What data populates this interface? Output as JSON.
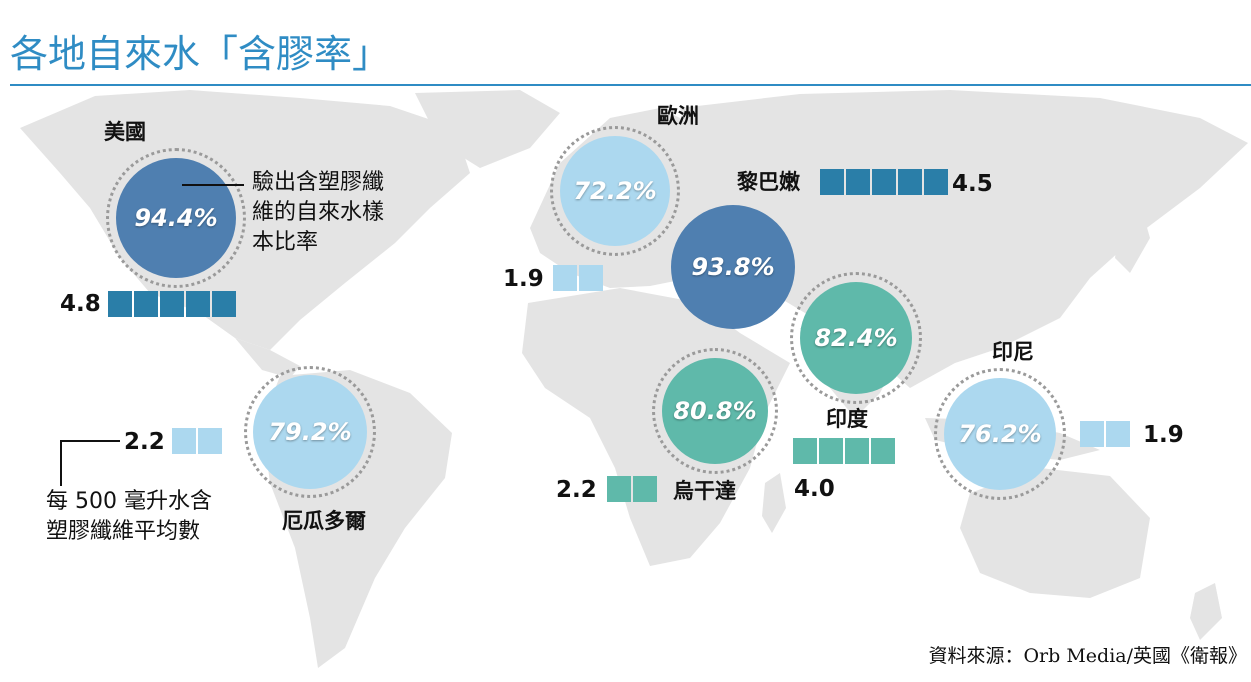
{
  "title": "各地自來水「含膠率」",
  "colors": {
    "title": "#2f8cc4",
    "land": "#e4e4e4",
    "high": "#4f7fb0",
    "mid_teal": "#5fb9aa",
    "light_blue": "#acd8ef",
    "block_dark": "#2a7ea8",
    "block_light": "#aad4ec",
    "block_teal": "#5fb9aa"
  },
  "legend": {
    "rate_note": [
      "驗出含塑膠纖",
      "維的自來水樣",
      "本比率"
    ],
    "avg_note": [
      "每 500 毫升水含",
      "塑膠纖維平均數"
    ]
  },
  "regions": [
    {
      "name": "美國",
      "rate": "94.4%",
      "avg": "4.8",
      "color": "high",
      "block_color": "block_dark",
      "blocks": 5
    },
    {
      "name": "厄瓜多爾",
      "rate": "79.2%",
      "avg": "2.2",
      "color": "light_blue",
      "block_color": "block_light",
      "blocks": 2
    },
    {
      "name": "歐洲",
      "rate": "72.2%",
      "avg": "1.9",
      "color": "light_blue",
      "block_color": "block_light",
      "blocks": 2
    },
    {
      "name": "黎巴嫩",
      "rate": "93.8%",
      "avg": "4.5",
      "color": "high",
      "block_color": "block_dark",
      "blocks": 5
    },
    {
      "name": "烏干達",
      "rate": "80.8%",
      "avg": "2.2",
      "color": "mid_teal",
      "block_color": "block_teal",
      "blocks": 2
    },
    {
      "name": "印度",
      "rate": "82.4%",
      "avg": "4.0",
      "color": "mid_teal",
      "block_color": "block_teal",
      "blocks": 4
    },
    {
      "name": "印尼",
      "rate": "76.2%",
      "avg": "1.9",
      "color": "light_blue",
      "block_color": "block_light",
      "blocks": 2
    }
  ],
  "source": "資料來源：Orb Media/英國《衛報》"
}
